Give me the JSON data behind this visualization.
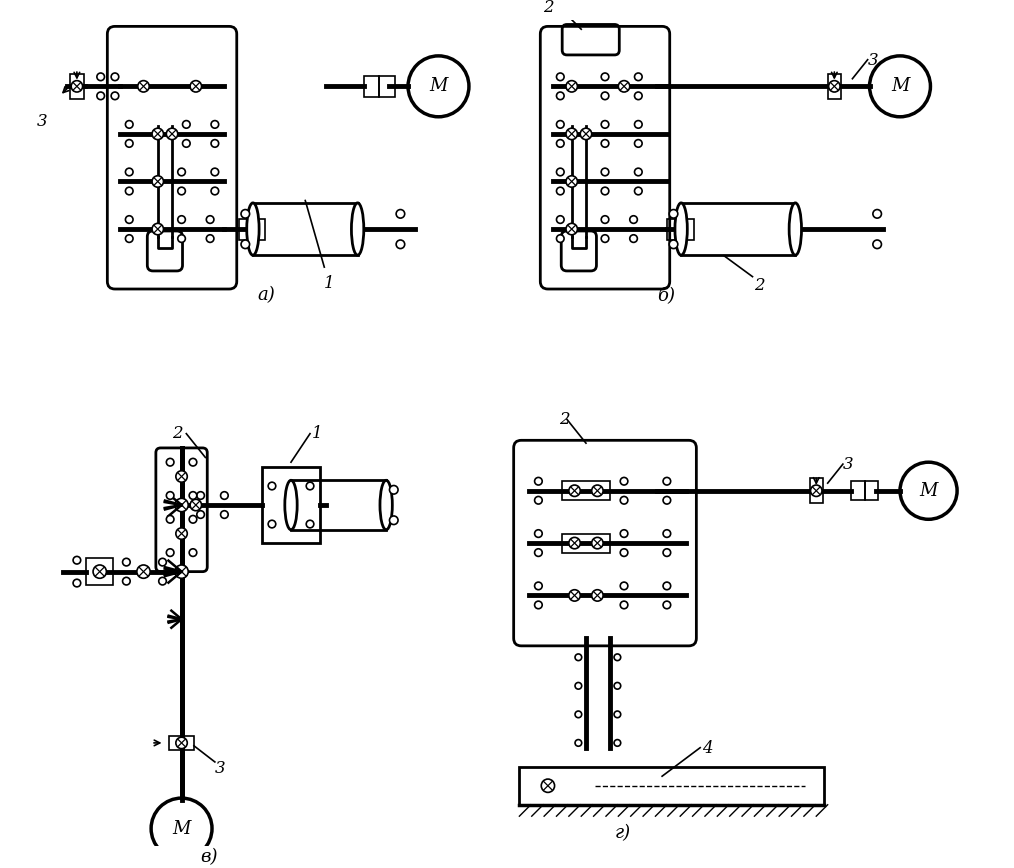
{
  "bg_color": "#ffffff",
  "lc": "#000000",
  "label_a": "а)",
  "label_b": "б)",
  "label_v": "в)",
  "label_g": "г)",
  "n1": "1",
  "n2": "2",
  "n3": "3",
  "n4": "4"
}
